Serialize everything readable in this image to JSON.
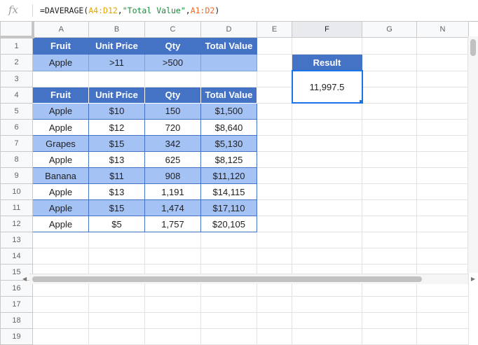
{
  "formula_bar": {
    "icon": "fx-icon",
    "prefix": "=DAVERAGE(",
    "ref1": "A4:D12",
    "comma1": ",",
    "string": "\"Total Value\"",
    "comma2": ",",
    "ref2": "A1:D2",
    "suffix": ")"
  },
  "columns": [
    "A",
    "B",
    "C",
    "D",
    "E",
    "F",
    "G",
    "N"
  ],
  "rows": [
    "1",
    "2",
    "3",
    "4",
    "5",
    "6",
    "7",
    "8",
    "9",
    "10",
    "11",
    "12",
    "13",
    "14",
    "15",
    "16",
    "17",
    "18",
    "19"
  ],
  "criteria": {
    "headers": [
      "Fruit",
      "Unit Price",
      "Qty",
      "Total Value"
    ],
    "values": [
      "Apple",
      ">11",
      ">500",
      ""
    ]
  },
  "table": {
    "headers": [
      "Fruit",
      "Unit Price",
      "Qty",
      "Total Value"
    ],
    "rows": [
      [
        "Apple",
        "$10",
        "150",
        "$1,500"
      ],
      [
        "Apple",
        "$12",
        "720",
        "$8,640"
      ],
      [
        "Grapes",
        "$15",
        "342",
        "$5,130"
      ],
      [
        "Apple",
        "$13",
        "625",
        "$8,125"
      ],
      [
        "Banana",
        "$11",
        "908",
        "$11,120"
      ],
      [
        "Apple",
        "$13",
        "1,191",
        "$14,115"
      ],
      [
        "Apple",
        "$15",
        "1,474",
        "$17,110"
      ],
      [
        "Apple",
        "$5",
        "1,757",
        "$20,105"
      ]
    ]
  },
  "result": {
    "label": "Result",
    "value": "11,997.5"
  },
  "colors": {
    "header_blue": "#4472c4",
    "band_blue": "#a4c2f4",
    "selection": "#1a73e8"
  }
}
